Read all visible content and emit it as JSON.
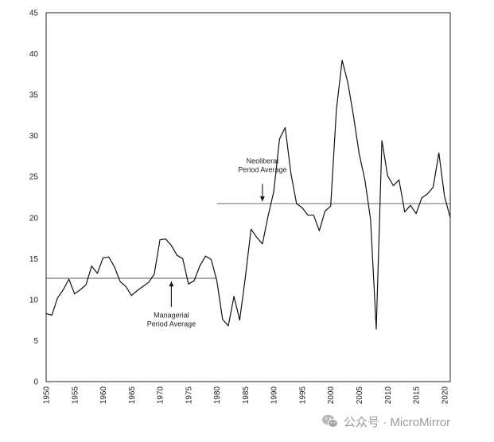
{
  "chart_data": {
    "type": "line",
    "title": "",
    "xlabel": "",
    "ylabel": "",
    "xlim": [
      1950,
      2021
    ],
    "ylim": [
      0,
      45
    ],
    "yticks": [
      0,
      5,
      10,
      15,
      20,
      25,
      30,
      35,
      40,
      45
    ],
    "xticks": [
      1950,
      1955,
      1960,
      1965,
      1970,
      1975,
      1980,
      1985,
      1990,
      1995,
      2000,
      2005,
      2010,
      2015,
      2020
    ],
    "grid": false,
    "legend": "none",
    "series": [
      {
        "line_color": "#111111",
        "points": [
          [
            1950,
            8.3
          ],
          [
            1951,
            8.1
          ],
          [
            1952,
            10.2
          ],
          [
            1953,
            11.2
          ],
          [
            1954,
            12.5
          ],
          [
            1955,
            10.7
          ],
          [
            1956,
            11.2
          ],
          [
            1957,
            11.8
          ],
          [
            1958,
            14.1
          ],
          [
            1959,
            13.2
          ],
          [
            1960,
            15.1
          ],
          [
            1961,
            15.2
          ],
          [
            1962,
            14.0
          ],
          [
            1963,
            12.2
          ],
          [
            1964,
            11.6
          ],
          [
            1965,
            10.5
          ],
          [
            1966,
            11.1
          ],
          [
            1967,
            11.6
          ],
          [
            1968,
            12.1
          ],
          [
            1969,
            13.1
          ],
          [
            1970,
            17.3
          ],
          [
            1971,
            17.4
          ],
          [
            1972,
            16.6
          ],
          [
            1973,
            15.4
          ],
          [
            1974,
            15.0
          ],
          [
            1975,
            11.9
          ],
          [
            1976,
            12.3
          ],
          [
            1977,
            14.1
          ],
          [
            1978,
            15.3
          ],
          [
            1979,
            14.9
          ],
          [
            1980,
            12.3
          ],
          [
            1981,
            7.6
          ],
          [
            1982,
            6.8
          ],
          [
            1983,
            10.4
          ],
          [
            1984,
            7.5
          ],
          [
            1985,
            12.7
          ],
          [
            1986,
            18.6
          ],
          [
            1987,
            17.6
          ],
          [
            1988,
            16.8
          ],
          [
            1989,
            20.2
          ],
          [
            1990,
            23.2
          ],
          [
            1991,
            29.6
          ],
          [
            1992,
            31.0
          ],
          [
            1993,
            25.4
          ],
          [
            1994,
            21.7
          ],
          [
            1995,
            21.2
          ],
          [
            1996,
            20.3
          ],
          [
            1997,
            20.3
          ],
          [
            1998,
            18.4
          ],
          [
            1999,
            20.8
          ],
          [
            2000,
            21.4
          ],
          [
            2001,
            33.2
          ],
          [
            2002,
            39.2
          ],
          [
            2003,
            36.5
          ],
          [
            2004,
            32.4
          ],
          [
            2005,
            27.8
          ],
          [
            2006,
            24.6
          ],
          [
            2007,
            19.8
          ],
          [
            2008,
            6.4
          ],
          [
            2009,
            29.4
          ],
          [
            2010,
            25.1
          ],
          [
            2011,
            23.9
          ],
          [
            2012,
            24.6
          ],
          [
            2013,
            20.7
          ],
          [
            2014,
            21.5
          ],
          [
            2015,
            20.5
          ],
          [
            2016,
            22.4
          ],
          [
            2017,
            22.9
          ],
          [
            2018,
            23.7
          ],
          [
            2019,
            27.9
          ],
          [
            2020,
            22.6
          ],
          [
            2021,
            20.0
          ]
        ]
      }
    ],
    "reference_lines": [
      {
        "x_start": 1950,
        "x_end": 1980,
        "y": 12.6,
        "color": "#888888"
      },
      {
        "x_start": 1980,
        "x_end": 2021,
        "y": 21.7,
        "color": "#888888"
      }
    ],
    "annotations": [
      {
        "lines": [
          "Neoliberal",
          "Period Average"
        ],
        "x": 1988,
        "text_y": 26.6,
        "arrow_from": 24.1,
        "arrow_to": 22.0,
        "direction": "down"
      },
      {
        "lines": [
          "Managerial",
          "Period Average"
        ],
        "x": 1972,
        "text_y": 7.8,
        "arrow_from": 9.1,
        "arrow_to": 12.2,
        "direction": "up"
      }
    ]
  },
  "watermark": {
    "text": "公众号 · MicroMirror",
    "icon": "wechat-icon"
  }
}
